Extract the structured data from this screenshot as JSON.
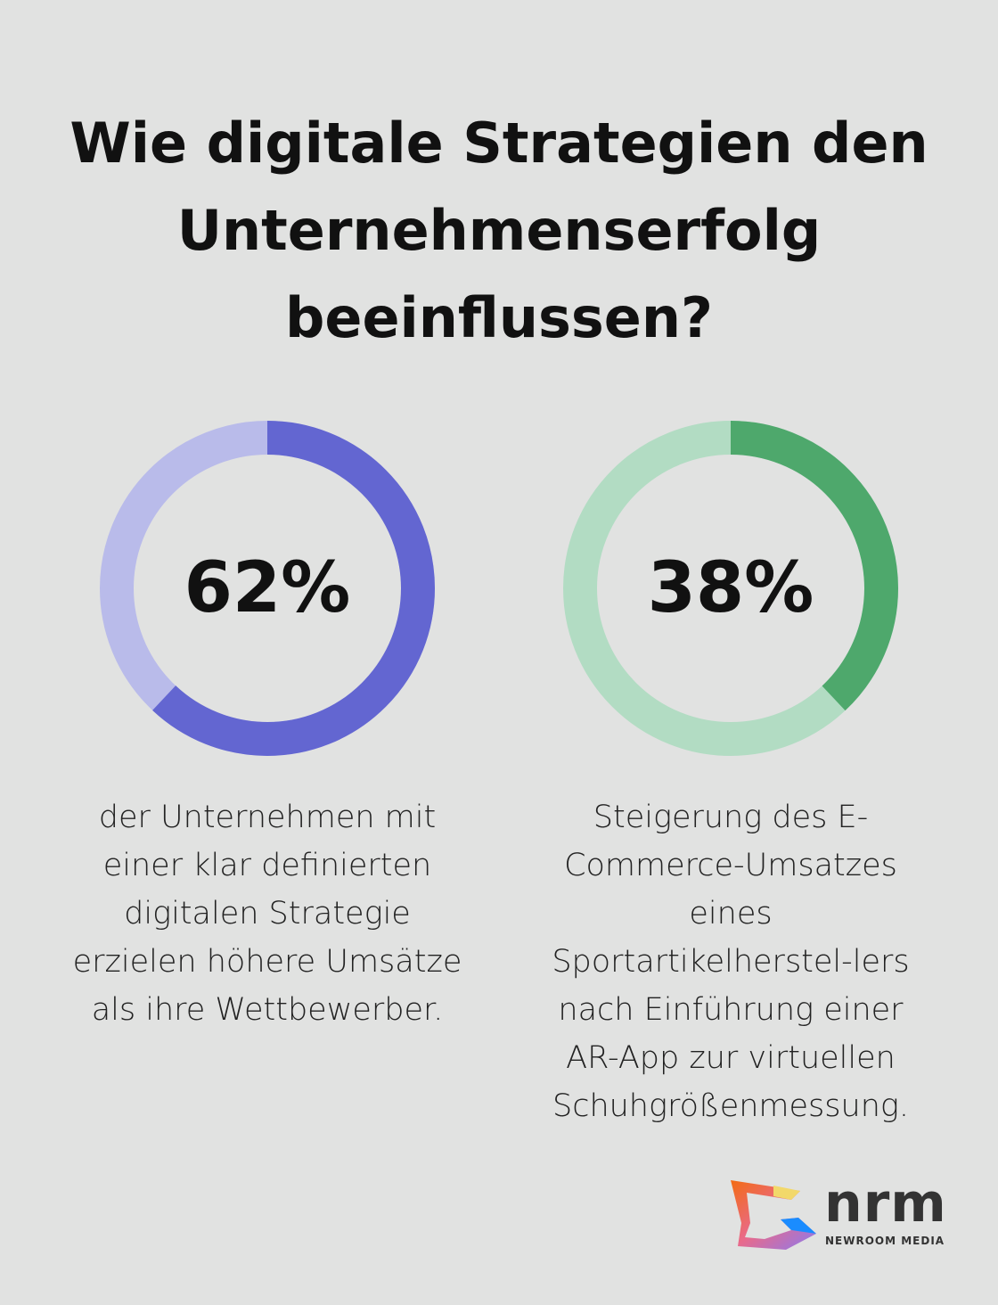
{
  "title": [
    "Wie digitale Strategien den",
    "Unternehmenserfolg",
    "beeinflussen?"
  ],
  "stats": [
    {
      "value": 62,
      "label": "62%",
      "description": "der Unternehmen mit einer klar definierten digitalen Strategie erzielen höhere Umsätze als ihre Wettbewerber.",
      "color": "#6366d1",
      "track_color": "#b9bbea"
    },
    {
      "value": 38,
      "label": "38%",
      "description": "Steigerung des E-Commerce-Umsatzes eines Sportartikelherstel-lers nach Einführung einer AR-App zur virtuellen Schuhgrößenmessung.",
      "color": "#4ea86c",
      "track_color": "#b2dcc3"
    }
  ],
  "logo": {
    "name": "nrm",
    "subtitle": "NEWROOM MEDIA"
  }
}
